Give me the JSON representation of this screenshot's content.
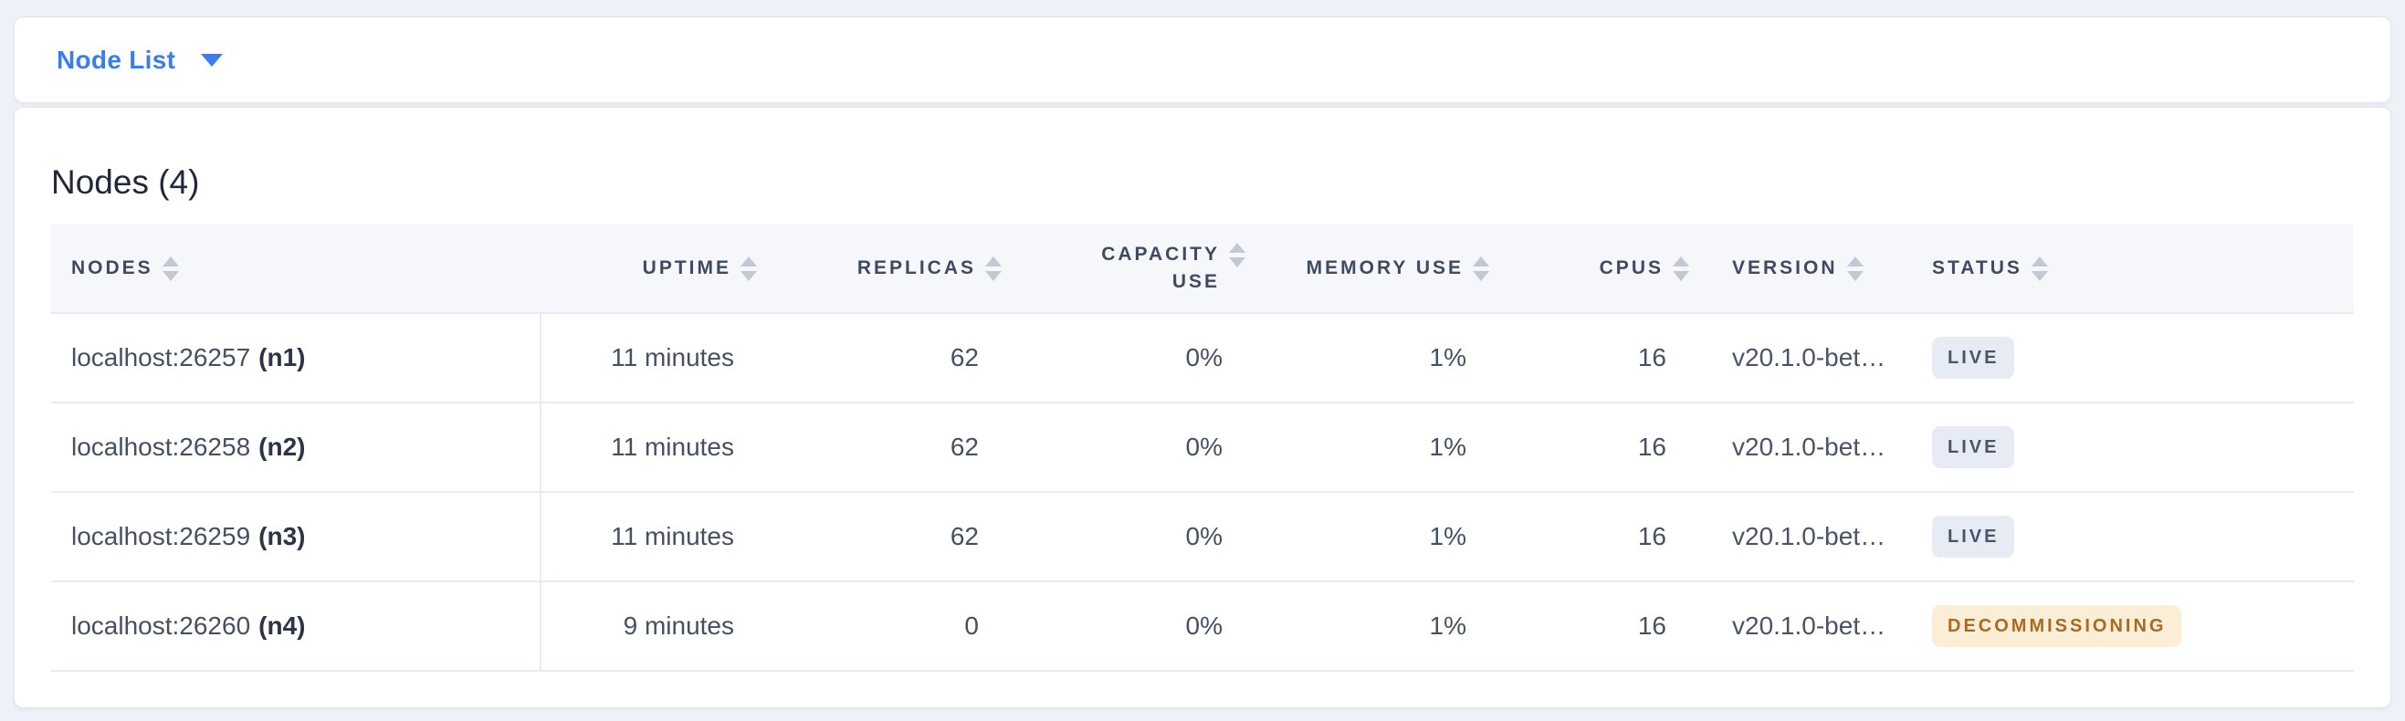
{
  "view_selector": {
    "label": "Node List",
    "caret_icon": "caret-down-icon"
  },
  "page_title": "Nodes (4)",
  "table": {
    "columns": [
      {
        "id": "nodes",
        "label": "NODES",
        "align": "left"
      },
      {
        "id": "uptime",
        "label": "UPTIME",
        "align": "right"
      },
      {
        "id": "replicas",
        "label": "REPLICAS",
        "align": "right"
      },
      {
        "id": "capacity_use",
        "label": "CAPACITY USE",
        "align": "right"
      },
      {
        "id": "memory_use",
        "label": "MEMORY USE",
        "align": "right"
      },
      {
        "id": "cpus",
        "label": "CPUS",
        "align": "right"
      },
      {
        "id": "version",
        "label": "VERSION",
        "align": "left"
      },
      {
        "id": "status",
        "label": "STATUS",
        "align": "left"
      }
    ],
    "rows": [
      {
        "node_address": "localhost:26257",
        "node_id": "(n1)",
        "uptime": "11 minutes",
        "replicas": "62",
        "capacity_use": "0%",
        "memory_use": "1%",
        "cpus": "16",
        "version": "v20.1.0-bet…",
        "status": "LIVE"
      },
      {
        "node_address": "localhost:26258",
        "node_id": "(n2)",
        "uptime": "11 minutes",
        "replicas": "62",
        "capacity_use": "0%",
        "memory_use": "1%",
        "cpus": "16",
        "version": "v20.1.0-bet…",
        "status": "LIVE"
      },
      {
        "node_address": "localhost:26259",
        "node_id": "(n3)",
        "uptime": "11 minutes",
        "replicas": "62",
        "capacity_use": "0%",
        "memory_use": "1%",
        "cpus": "16",
        "version": "v20.1.0-bet…",
        "status": "LIVE"
      },
      {
        "node_address": "localhost:26260",
        "node_id": "(n4)",
        "uptime": "9 minutes",
        "replicas": "0",
        "capacity_use": "0%",
        "memory_use": "1%",
        "cpus": "16",
        "version": "v20.1.0-bet…",
        "status": "DECOMMISSIONING"
      }
    ]
  },
  "colors": {
    "accent_blue": "#3a7df0",
    "header_text": "#3e4a63",
    "status_live_bg": "#e7ebf3",
    "status_live_text": "#4a5469",
    "status_decommissioning_bg": "#fbeed7",
    "status_decommissioning_text": "#a96a21"
  }
}
